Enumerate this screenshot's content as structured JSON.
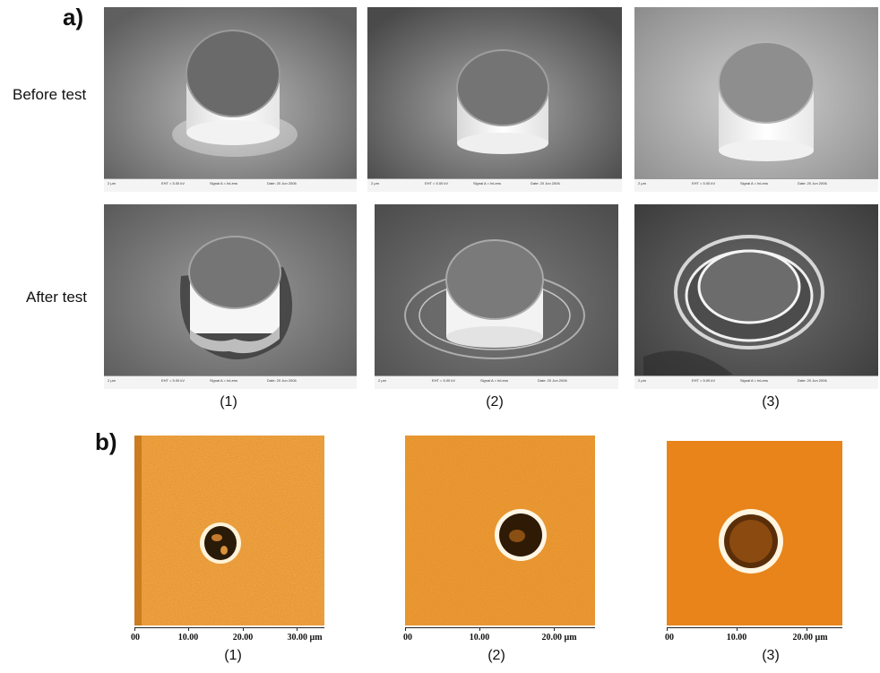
{
  "panel_a": {
    "label": "a)",
    "row_labels": {
      "before": "Before test",
      "after": "After test"
    },
    "captions": [
      "(1)",
      "(2)",
      "(3)"
    ]
  },
  "panel_b": {
    "label": "b)",
    "captions": [
      "(1)",
      "(2)",
      "(3)"
    ],
    "axes": [
      {
        "ticks": [
          "00",
          "10.00",
          "20.00",
          "30.00 µm"
        ]
      },
      {
        "ticks": [
          "00",
          "10.00",
          "20.00 µm"
        ]
      },
      {
        "ticks": [
          "00",
          "10.00",
          "20.00 µm"
        ]
      }
    ]
  },
  "sem_databar_text": {
    "scale": "2 µm",
    "eht": "EHT = 5.00 kV",
    "wd": "WD = 7 mm",
    "signal": "Signal A = InLens",
    "date": "Date: 20 Jun 2006"
  },
  "colors": {
    "afm_background": "#e58a1e",
    "sem_background": "#6e6e6e"
  }
}
